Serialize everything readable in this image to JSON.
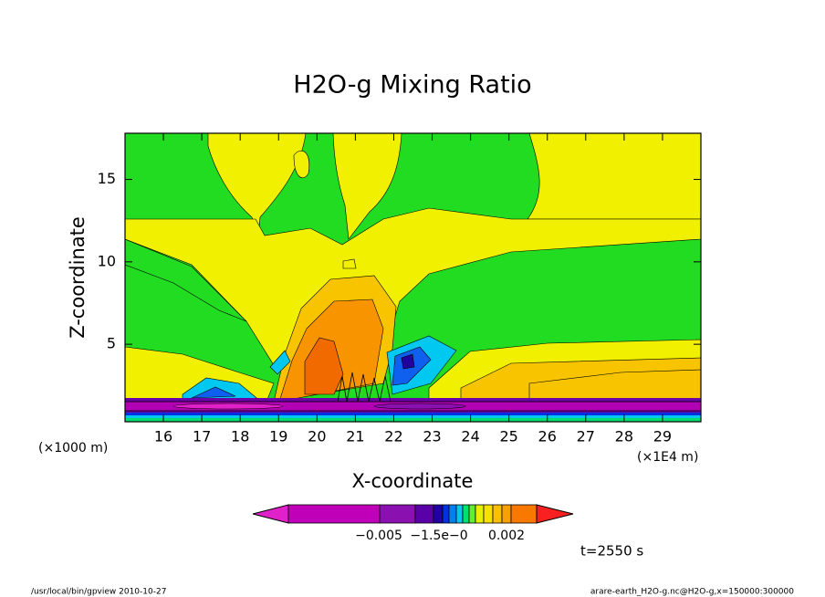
{
  "chart_data": {
    "type": "contour",
    "title": "H2O-g Mixing Ratio",
    "x_label": "X-coordinate",
    "y_label": "Z-coordinate",
    "x_unit": "(×1E4 m)",
    "y_unit": "(×1000 m)",
    "xlim": [
      15,
      30
    ],
    "xticks": [
      16,
      17,
      18,
      19,
      20,
      21,
      22,
      23,
      24,
      25,
      26,
      27,
      28,
      29
    ],
    "ylim": [
      0.3,
      17.8
    ],
    "yticks": [
      5,
      10,
      15
    ],
    "colorbar": {
      "colors": [
        "#e020c8",
        "#c000b8",
        "#8a10b0",
        "#5a00a8",
        "#2000a0",
        "#0030e0",
        "#0080f0",
        "#00c8f0",
        "#00e070",
        "#60f030",
        "#e8f000",
        "#f8e000",
        "#f8c000",
        "#f8a000",
        "#f87800",
        "#f82020"
      ],
      "labels": [
        "−0.005",
        "−1.5e−0",
        "0.002"
      ]
    },
    "time_label": "t=2550 s",
    "footer_left": "/usr/local/bin/gpview  2010-10-27",
    "footer_right": "arare-earth_H2O-g.nc@H2O-g,x=150000:300000"
  }
}
